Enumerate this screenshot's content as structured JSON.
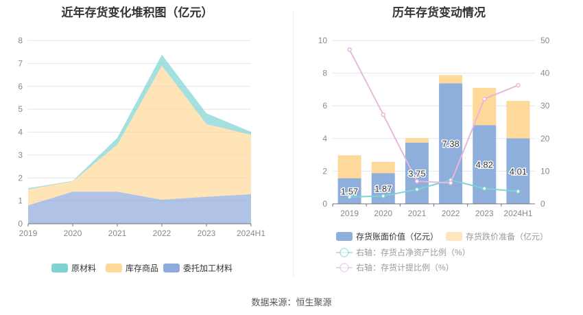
{
  "source_label": "数据来源：恒生聚源",
  "chart_data": [
    {
      "type": "area",
      "stacked": true,
      "title": "近年存货变化堆积图（亿元）",
      "categories": [
        "2019",
        "2020",
        "2021",
        "2022",
        "2023",
        "2024H1"
      ],
      "ylim": [
        0,
        8
      ],
      "yticks": [
        "0",
        "1",
        "2",
        "3",
        "4",
        "5",
        "6",
        "7",
        "8"
      ],
      "grid": true,
      "legend_position": "bottom",
      "series": [
        {
          "name": "委托加工材料",
          "color": "#8faadc",
          "values": [
            0.8,
            1.4,
            1.4,
            1.05,
            1.18,
            1.29
          ]
        },
        {
          "name": "库存商品",
          "color": "#ffd999",
          "values": [
            0.7,
            0.45,
            2.05,
            5.85,
            3.17,
            2.59
          ]
        },
        {
          "name": "原材料",
          "color": "#7fd3d3",
          "values": [
            0.05,
            0.02,
            0.3,
            0.48,
            0.47,
            0.13
          ]
        }
      ]
    },
    {
      "type": "bar",
      "stacked": true,
      "title": "历年存货变动情况",
      "categories": [
        "2019",
        "2020",
        "2021",
        "2022",
        "2023",
        "2024H1"
      ],
      "ylim": [
        0,
        10
      ],
      "yticks": [
        "0",
        "2",
        "4",
        "6",
        "8",
        "10"
      ],
      "y2lim": [
        0,
        50
      ],
      "y2ticks": [
        "0",
        "10",
        "20",
        "30",
        "40",
        "50"
      ],
      "grid": true,
      "legend_position": "bottom",
      "series": [
        {
          "name": "存货账面价值（亿元）",
          "color": "#8eaedb",
          "values": [
            1.57,
            1.87,
            3.75,
            7.38,
            4.82,
            4.01
          ],
          "labels": [
            "1.57",
            "1.87",
            "3.75",
            "7.38",
            "4.82",
            "4.01"
          ]
        },
        {
          "name": "存货跌价准备（亿元）",
          "color": "#ffd999",
          "values": [
            1.4,
            0.7,
            0.28,
            0.5,
            2.28,
            2.29
          ]
        },
        {
          "name": "右轴：存货占净资产比例（%）",
          "type": "line",
          "axis": "right",
          "color": "#7fd3d3",
          "values": [
            2.1,
            2.4,
            4.4,
            7.3,
            4.7,
            3.8
          ]
        },
        {
          "name": "右轴：存货计提比例（%）",
          "type": "line",
          "axis": "right",
          "color": "#e6b8dc",
          "values": [
            47.2,
            27.3,
            6.9,
            6.4,
            32.1,
            36.3
          ]
        }
      ]
    }
  ]
}
